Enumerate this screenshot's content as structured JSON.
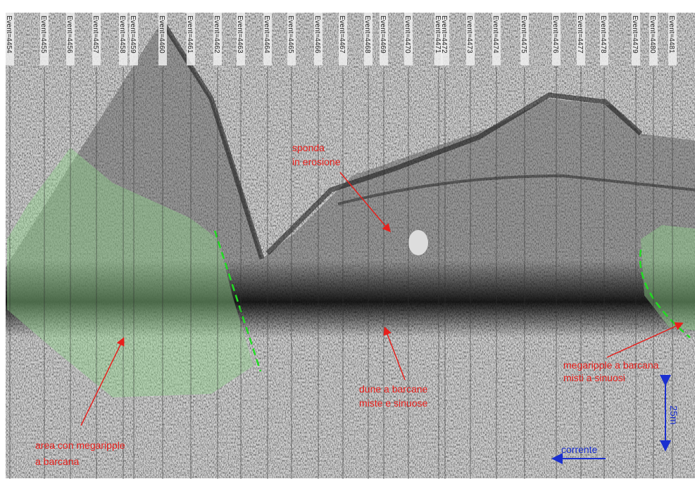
{
  "events": [
    "Event=4454",
    "Event=4455",
    "Event=4456",
    "Event=4457",
    "Event=4458",
    "Event=4459",
    "Event=4460",
    "Event=4461",
    "Event=4462",
    "Event=4463",
    "Event=4464",
    "Event=4465",
    "Event=4466",
    "Event=4467",
    "Event=4468",
    "Event=4469",
    "Event=4470",
    "Event=4471",
    "Event=4472",
    "Event=4473",
    "Event=4474",
    "Event=4475",
    "Event=4476",
    "Event=4477",
    "Event=4478",
    "Event=4479",
    "Event=4480",
    "Event=4481"
  ],
  "annotations": {
    "bank": [
      "sponda",
      "in erosione"
    ],
    "dunes": [
      "dune a barcane",
      "miste e sinuose"
    ],
    "megaripple_right": [
      "megaripple a barcana",
      "misti a sinuosi"
    ],
    "megaripple_left": [
      "area con megaripple",
      "a barcana"
    ],
    "scale": "25m",
    "current": "corrente"
  }
}
